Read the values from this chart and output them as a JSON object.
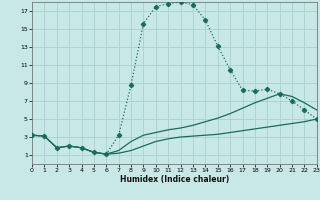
{
  "xlabel": "Humidex (Indice chaleur)",
  "background_color": "#c8e8e8",
  "grid_color": "#aad0d0",
  "line_color": "#1a6b5a",
  "xlim": [
    0,
    23
  ],
  "ylim": [
    0,
    18
  ],
  "xticks": [
    0,
    1,
    2,
    3,
    4,
    5,
    6,
    7,
    8,
    9,
    10,
    11,
    12,
    13,
    14,
    15,
    16,
    17,
    18,
    19,
    20,
    21,
    22,
    23
  ],
  "yticks": [
    1,
    3,
    5,
    7,
    9,
    11,
    13,
    15,
    17
  ],
  "line1_x": [
    0,
    1,
    2,
    3,
    4,
    5,
    6,
    7,
    8,
    9,
    10,
    11,
    12,
    13,
    14,
    15,
    16,
    17,
    18,
    19,
    20,
    21,
    22,
    23
  ],
  "line1_y": [
    3.2,
    3.1,
    1.8,
    2.0,
    1.8,
    1.3,
    1.1,
    1.2,
    1.5,
    2.0,
    2.5,
    2.8,
    3.0,
    3.1,
    3.2,
    3.3,
    3.5,
    3.7,
    3.9,
    4.1,
    4.3,
    4.5,
    4.7,
    5.0
  ],
  "line2_x": [
    0,
    1,
    2,
    3,
    4,
    5,
    6,
    7,
    8,
    9,
    10,
    11,
    12,
    13,
    14,
    15,
    16,
    17,
    18,
    19,
    20,
    21,
    22,
    23
  ],
  "line2_y": [
    3.2,
    3.1,
    1.8,
    2.0,
    1.8,
    1.3,
    1.1,
    1.5,
    2.5,
    3.2,
    3.5,
    3.8,
    4.0,
    4.3,
    4.7,
    5.1,
    5.6,
    6.2,
    6.8,
    7.3,
    7.8,
    7.5,
    6.8,
    6.0
  ],
  "line3_x": [
    0,
    1,
    2,
    3,
    4,
    5,
    6,
    7,
    8,
    9,
    10,
    11,
    12,
    13,
    14,
    15,
    16,
    17,
    18,
    19,
    20,
    21,
    22,
    23
  ],
  "line3_y": [
    3.2,
    3.1,
    1.8,
    2.0,
    1.8,
    1.3,
    1.1,
    3.2,
    8.8,
    15.6,
    17.5,
    17.8,
    18.0,
    17.7,
    16.0,
    13.1,
    10.5,
    8.2,
    8.1,
    8.3,
    7.8,
    7.0,
    6.0,
    5.0
  ]
}
